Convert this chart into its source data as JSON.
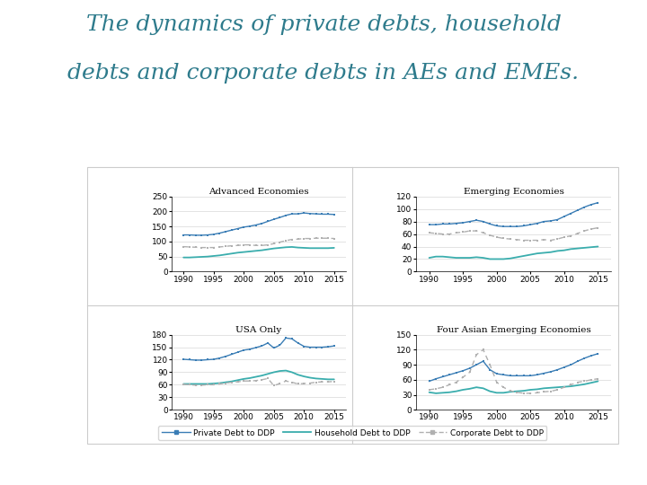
{
  "title_line1": "The dynamics of private debts, household",
  "title_line2": "debts and corporate debts in AEs and EMEs.",
  "title_color": "#2e7b8c",
  "title_fontsize": 18,
  "years": [
    1990,
    1991,
    1992,
    1993,
    1994,
    1995,
    1996,
    1997,
    1998,
    1999,
    2000,
    2001,
    2002,
    2003,
    2004,
    2005,
    2006,
    2007,
    2008,
    2009,
    2010,
    2011,
    2012,
    2013,
    2014,
    2015
  ],
  "panels": [
    {
      "title": "Advanced Economies",
      "ylim": [
        0,
        250
      ],
      "yticks": [
        0,
        50,
        100,
        150,
        200,
        250
      ],
      "private": [
        122,
        122,
        121,
        121,
        122,
        124,
        128,
        133,
        138,
        143,
        148,
        151,
        155,
        160,
        167,
        174,
        180,
        187,
        192,
        192,
        195,
        193,
        192,
        191,
        191,
        190
      ],
      "household": [
        47,
        47,
        48,
        49,
        50,
        52,
        54,
        57,
        60,
        63,
        65,
        67,
        69,
        71,
        74,
        77,
        79,
        81,
        82,
        80,
        79,
        78,
        78,
        78,
        78,
        79
      ],
      "corporate": [
        83,
        82,
        81,
        80,
        80,
        80,
        82,
        84,
        86,
        87,
        89,
        89,
        87,
        87,
        89,
        93,
        98,
        103,
        107,
        108,
        110,
        110,
        111,
        111,
        111,
        110
      ]
    },
    {
      "title": "Emerging Economies",
      "ylim": [
        0,
        120
      ],
      "yticks": [
        0,
        20,
        40,
        60,
        80,
        100,
        120
      ],
      "private": [
        75,
        75,
        76,
        76,
        77,
        78,
        80,
        82,
        80,
        76,
        73,
        72,
        72,
        72,
        73,
        75,
        77,
        80,
        81,
        83,
        88,
        93,
        98,
        103,
        107,
        110
      ],
      "household": [
        22,
        24,
        24,
        23,
        22,
        22,
        22,
        23,
        22,
        20,
        20,
        20,
        21,
        23,
        25,
        27,
        29,
        30,
        31,
        33,
        34,
        36,
        37,
        38,
        39,
        40
      ],
      "corporate": [
        62,
        61,
        60,
        60,
        62,
        63,
        65,
        65,
        62,
        58,
        55,
        53,
        52,
        51,
        50,
        50,
        50,
        51,
        50,
        52,
        55,
        57,
        61,
        65,
        68,
        70
      ]
    },
    {
      "title": "USA Only",
      "ylim": [
        0,
        180
      ],
      "yticks": [
        0,
        30,
        60,
        90,
        120,
        150,
        180
      ],
      "private": [
        121,
        120,
        119,
        119,
        120,
        121,
        124,
        128,
        133,
        138,
        143,
        145,
        149,
        153,
        160,
        148,
        155,
        172,
        170,
        160,
        152,
        150,
        150,
        150,
        151,
        153
      ],
      "household": [
        62,
        62,
        62,
        62,
        62,
        63,
        64,
        66,
        68,
        71,
        74,
        76,
        79,
        82,
        86,
        90,
        93,
        94,
        90,
        84,
        80,
        77,
        75,
        74,
        73,
        73
      ],
      "corporate": [
        61,
        60,
        59,
        59,
        60,
        60,
        62,
        64,
        66,
        67,
        69,
        69,
        70,
        72,
        75,
        58,
        63,
        69,
        66,
        62,
        63,
        64,
        66,
        67,
        67,
        68
      ]
    },
    {
      "title": "Four Asian Emerging Economies",
      "ylim": [
        0,
        150
      ],
      "yticks": [
        0,
        30,
        60,
        90,
        120,
        150
      ],
      "private": [
        57,
        62,
        66,
        70,
        74,
        78,
        83,
        90,
        97,
        80,
        72,
        70,
        68,
        68,
        68,
        68,
        70,
        73,
        76,
        80,
        85,
        90,
        97,
        103,
        108,
        112
      ],
      "household": [
        35,
        33,
        34,
        35,
        37,
        40,
        42,
        45,
        43,
        37,
        34,
        34,
        36,
        37,
        38,
        40,
        41,
        43,
        44,
        45,
        46,
        47,
        49,
        51,
        54,
        57
      ],
      "corporate": [
        40,
        42,
        45,
        50,
        55,
        65,
        75,
        110,
        120,
        90,
        55,
        45,
        38,
        35,
        33,
        33,
        34,
        36,
        37,
        40,
        45,
        50,
        55,
        57,
        60,
        62
      ]
    }
  ],
  "colors": {
    "private": "#3a7db5",
    "household": "#3aadad",
    "corporate": "#b0b0b0"
  },
  "legend_labels": [
    "Private Debt to DDP",
    "Household Debt to DDP",
    "Corporate Debt to DDP"
  ],
  "background_color": "#ffffff",
  "panel_bg": "#ffffff",
  "outer_box_color": "#cccccc"
}
